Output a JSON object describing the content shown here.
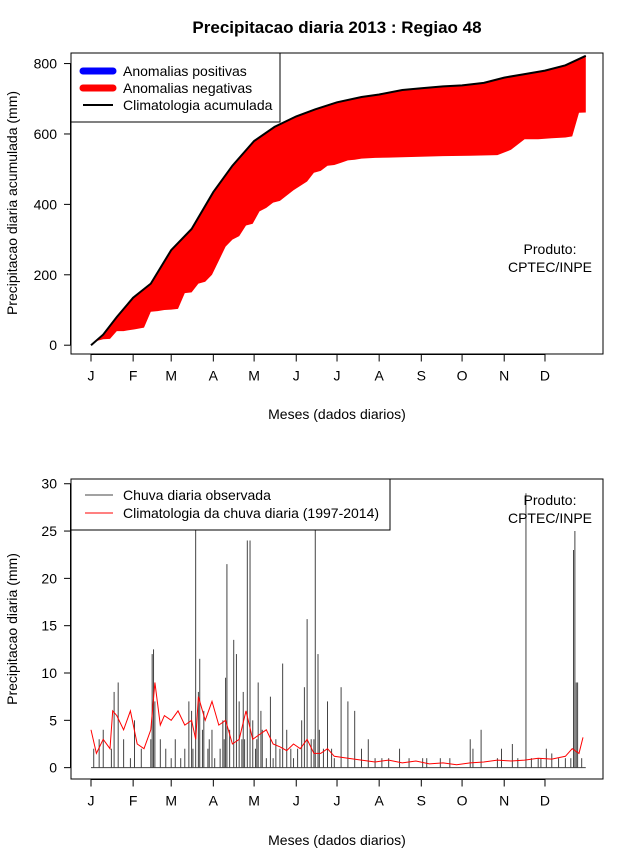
{
  "title": "Precipitacao diaria 2013 : Regiao 48",
  "month_ticks": [
    "J",
    "F",
    "M",
    "A",
    "M",
    "J",
    "J",
    "A",
    "S",
    "O",
    "N",
    "D"
  ],
  "credit_line1": "Produto:",
  "credit_line2": "CPTEC/INPE",
  "colors": {
    "positive": "#0000ff",
    "negative": "#ff0000",
    "climatology": "#000000",
    "observed": "#444444",
    "clim_daily": "#ff0000"
  },
  "chart_data": [
    {
      "type": "area",
      "name": "accumulated",
      "title": "Precipitacao diaria 2013 : Regiao 48",
      "xlabel": "Meses (dados diarios)",
      "ylabel": "Precipitacao diaria acumulada (mm)",
      "xlim": [
        1,
        365
      ],
      "ylim": [
        -25,
        830
      ],
      "yticks": [
        0,
        200,
        400,
        600,
        800
      ],
      "legend": {
        "position": "top-left",
        "items": [
          "Anomalias positivas",
          "Anomalias negativas",
          "Climatologia acumulada"
        ]
      },
      "climatology_accumulated": {
        "day": [
          1,
          10,
          20,
          32,
          45,
          60,
          75,
          91,
          105,
          121,
          136,
          152,
          166,
          182,
          200,
          213,
          230,
          244,
          260,
          274,
          290,
          305,
          320,
          335,
          350,
          365
        ],
        "value": [
          0,
          30,
          80,
          135,
          175,
          270,
          330,
          435,
          510,
          580,
          620,
          650,
          670,
          690,
          705,
          712,
          725,
          730,
          735,
          738,
          745,
          760,
          770,
          780,
          795,
          822
        ]
      },
      "observed_accumulated": {
        "day": [
          1,
          5,
          10,
          15,
          20,
          25,
          28,
          33,
          40,
          45,
          50,
          55,
          60,
          65,
          70,
          75,
          80,
          85,
          90,
          95,
          100,
          105,
          110,
          115,
          120,
          125,
          130,
          135,
          140,
          150,
          160,
          165,
          170,
          175,
          180,
          185,
          190,
          195,
          200,
          210,
          220,
          240,
          260,
          280,
          300,
          310,
          320,
          330,
          340,
          350,
          355,
          360,
          365
        ],
        "value": [
          0,
          12,
          17,
          18,
          40,
          40,
          42,
          45,
          50,
          95,
          97,
          100,
          101,
          103,
          148,
          150,
          175,
          180,
          200,
          240,
          280,
          300,
          310,
          340,
          345,
          380,
          390,
          405,
          410,
          440,
          465,
          490,
          495,
          510,
          512,
          518,
          525,
          527,
          530,
          532,
          533,
          535,
          537,
          538,
          540,
          555,
          585,
          585,
          588,
          590,
          593,
          660,
          661
        ]
      }
    },
    {
      "type": "bar",
      "name": "daily",
      "xlabel": "Meses (dados diarios)",
      "ylabel": "Precipitacao diaria (mm)",
      "xlim": [
        1,
        365
      ],
      "ylim": [
        -1.2,
        30.5
      ],
      "yticks": [
        0,
        5,
        10,
        15,
        20,
        25,
        30
      ],
      "legend": {
        "position": "top-left",
        "items": [
          "Chuva diaria observada",
          "Climatologia da chuva diaria (1997-2014)"
        ]
      },
      "observed_daily": {
        "day": [
          3,
          7,
          10,
          16,
          18,
          21,
          25,
          30,
          33,
          38,
          45,
          46,
          47,
          48,
          52,
          56,
          60,
          63,
          67,
          70,
          73,
          75,
          76,
          78,
          80,
          81,
          83,
          84,
          87,
          88,
          90,
          92,
          96,
          98,
          99,
          100,
          101,
          103,
          106,
          108,
          110,
          112,
          113,
          114,
          116,
          118,
          120,
          122,
          123,
          124,
          126,
          127,
          130,
          133,
          135,
          137,
          140,
          142,
          145,
          148,
          150,
          153,
          156,
          158,
          160,
          163,
          165,
          166,
          168,
          169,
          172,
          175,
          178,
          180,
          185,
          190,
          195,
          200,
          205,
          210,
          215,
          220,
          228,
          235,
          245,
          248,
          258,
          265,
          280,
          282,
          288,
          300,
          303,
          311,
          315,
          321,
          325,
          330,
          332,
          336,
          340,
          345,
          350,
          354,
          356,
          357,
          358,
          359,
          362
        ],
        "value": [
          2,
          3,
          4,
          2,
          8,
          9,
          3,
          1,
          5,
          2,
          3,
          12,
          12.5,
          7,
          3,
          2,
          1,
          3,
          1,
          2,
          7,
          6,
          2,
          30,
          8,
          11.5,
          4,
          6,
          2,
          3,
          4,
          1,
          2,
          5,
          3,
          9.5,
          21.5,
          4,
          13.5,
          12,
          7,
          3,
          8,
          3,
          24,
          24,
          5,
          2,
          3,
          9,
          6,
          4,
          1,
          7.5,
          1,
          3,
          2,
          11,
          4,
          2,
          1,
          2,
          5,
          8.5,
          15.7,
          3,
          3,
          30,
          12,
          4,
          2,
          7,
          2,
          1,
          8.5,
          7,
          6,
          2,
          3,
          1,
          1,
          1,
          2,
          1,
          1,
          1,
          1,
          1,
          3,
          2,
          4,
          1,
          2,
          2.5,
          1,
          29,
          1,
          1,
          1,
          2,
          1.5,
          1,
          1,
          1,
          23,
          25,
          9,
          9,
          1
        ]
      },
      "climatology_daily": {
        "day": [
          1,
          5,
          10,
          15,
          17,
          20,
          25,
          30,
          35,
          40,
          45,
          48,
          52,
          55,
          60,
          65,
          70,
          75,
          78,
          80,
          85,
          90,
          95,
          100,
          105,
          110,
          115,
          120,
          125,
          130,
          135,
          140,
          145,
          150,
          155,
          160,
          165,
          170,
          175,
          180,
          190,
          200,
          210,
          220,
          230,
          240,
          250,
          260,
          270,
          280,
          290,
          300,
          310,
          320,
          330,
          340,
          350,
          355,
          360,
          363
        ],
        "value": [
          4,
          1.5,
          3,
          2,
          6,
          5.5,
          4,
          6,
          2.5,
          2,
          4,
          9,
          4.5,
          5.5,
          5,
          6,
          4.5,
          5,
          3,
          7.5,
          5,
          7,
          4.5,
          5,
          2.5,
          3,
          6,
          3,
          3.5,
          4,
          2.5,
          2.2,
          1.8,
          2.5,
          2,
          3,
          1.5,
          1.5,
          2,
          1.2,
          1,
          0.8,
          0.6,
          0.8,
          0.5,
          0.7,
          0.4,
          0.5,
          0.3,
          0.5,
          0.6,
          0.8,
          0.7,
          0.8,
          1,
          0.9,
          1.2,
          2,
          1.5,
          3.2
        ]
      }
    }
  ]
}
